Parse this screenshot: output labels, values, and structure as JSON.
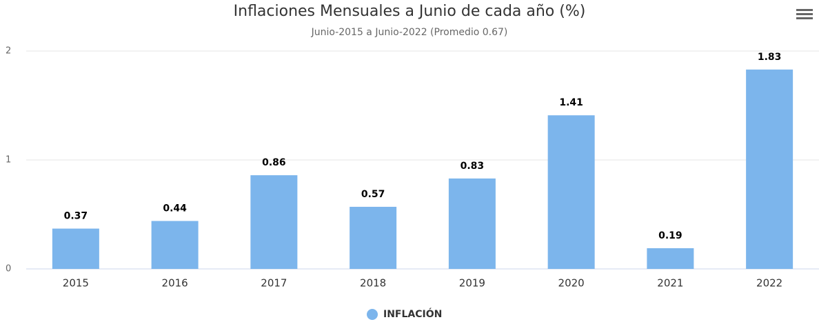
{
  "chart_data": {
    "type": "bar",
    "title": "Inflaciones Mensuales a Junio de cada año (%)",
    "subtitle": "Junio-2015 a Junio-2022 (Promedio 0.67)",
    "categories": [
      "2015",
      "2016",
      "2017",
      "2018",
      "2019",
      "2020",
      "2021",
      "2022"
    ],
    "series": [
      {
        "name": "INFLACIÓN",
        "color": "#7cb5ec",
        "values": [
          0.37,
          0.44,
          0.86,
          0.57,
          0.83,
          1.41,
          0.19,
          1.83
        ]
      }
    ],
    "ylim": [
      0,
      2
    ],
    "yticks": [
      0,
      1,
      2
    ],
    "grid": true,
    "legend": "bottom"
  }
}
